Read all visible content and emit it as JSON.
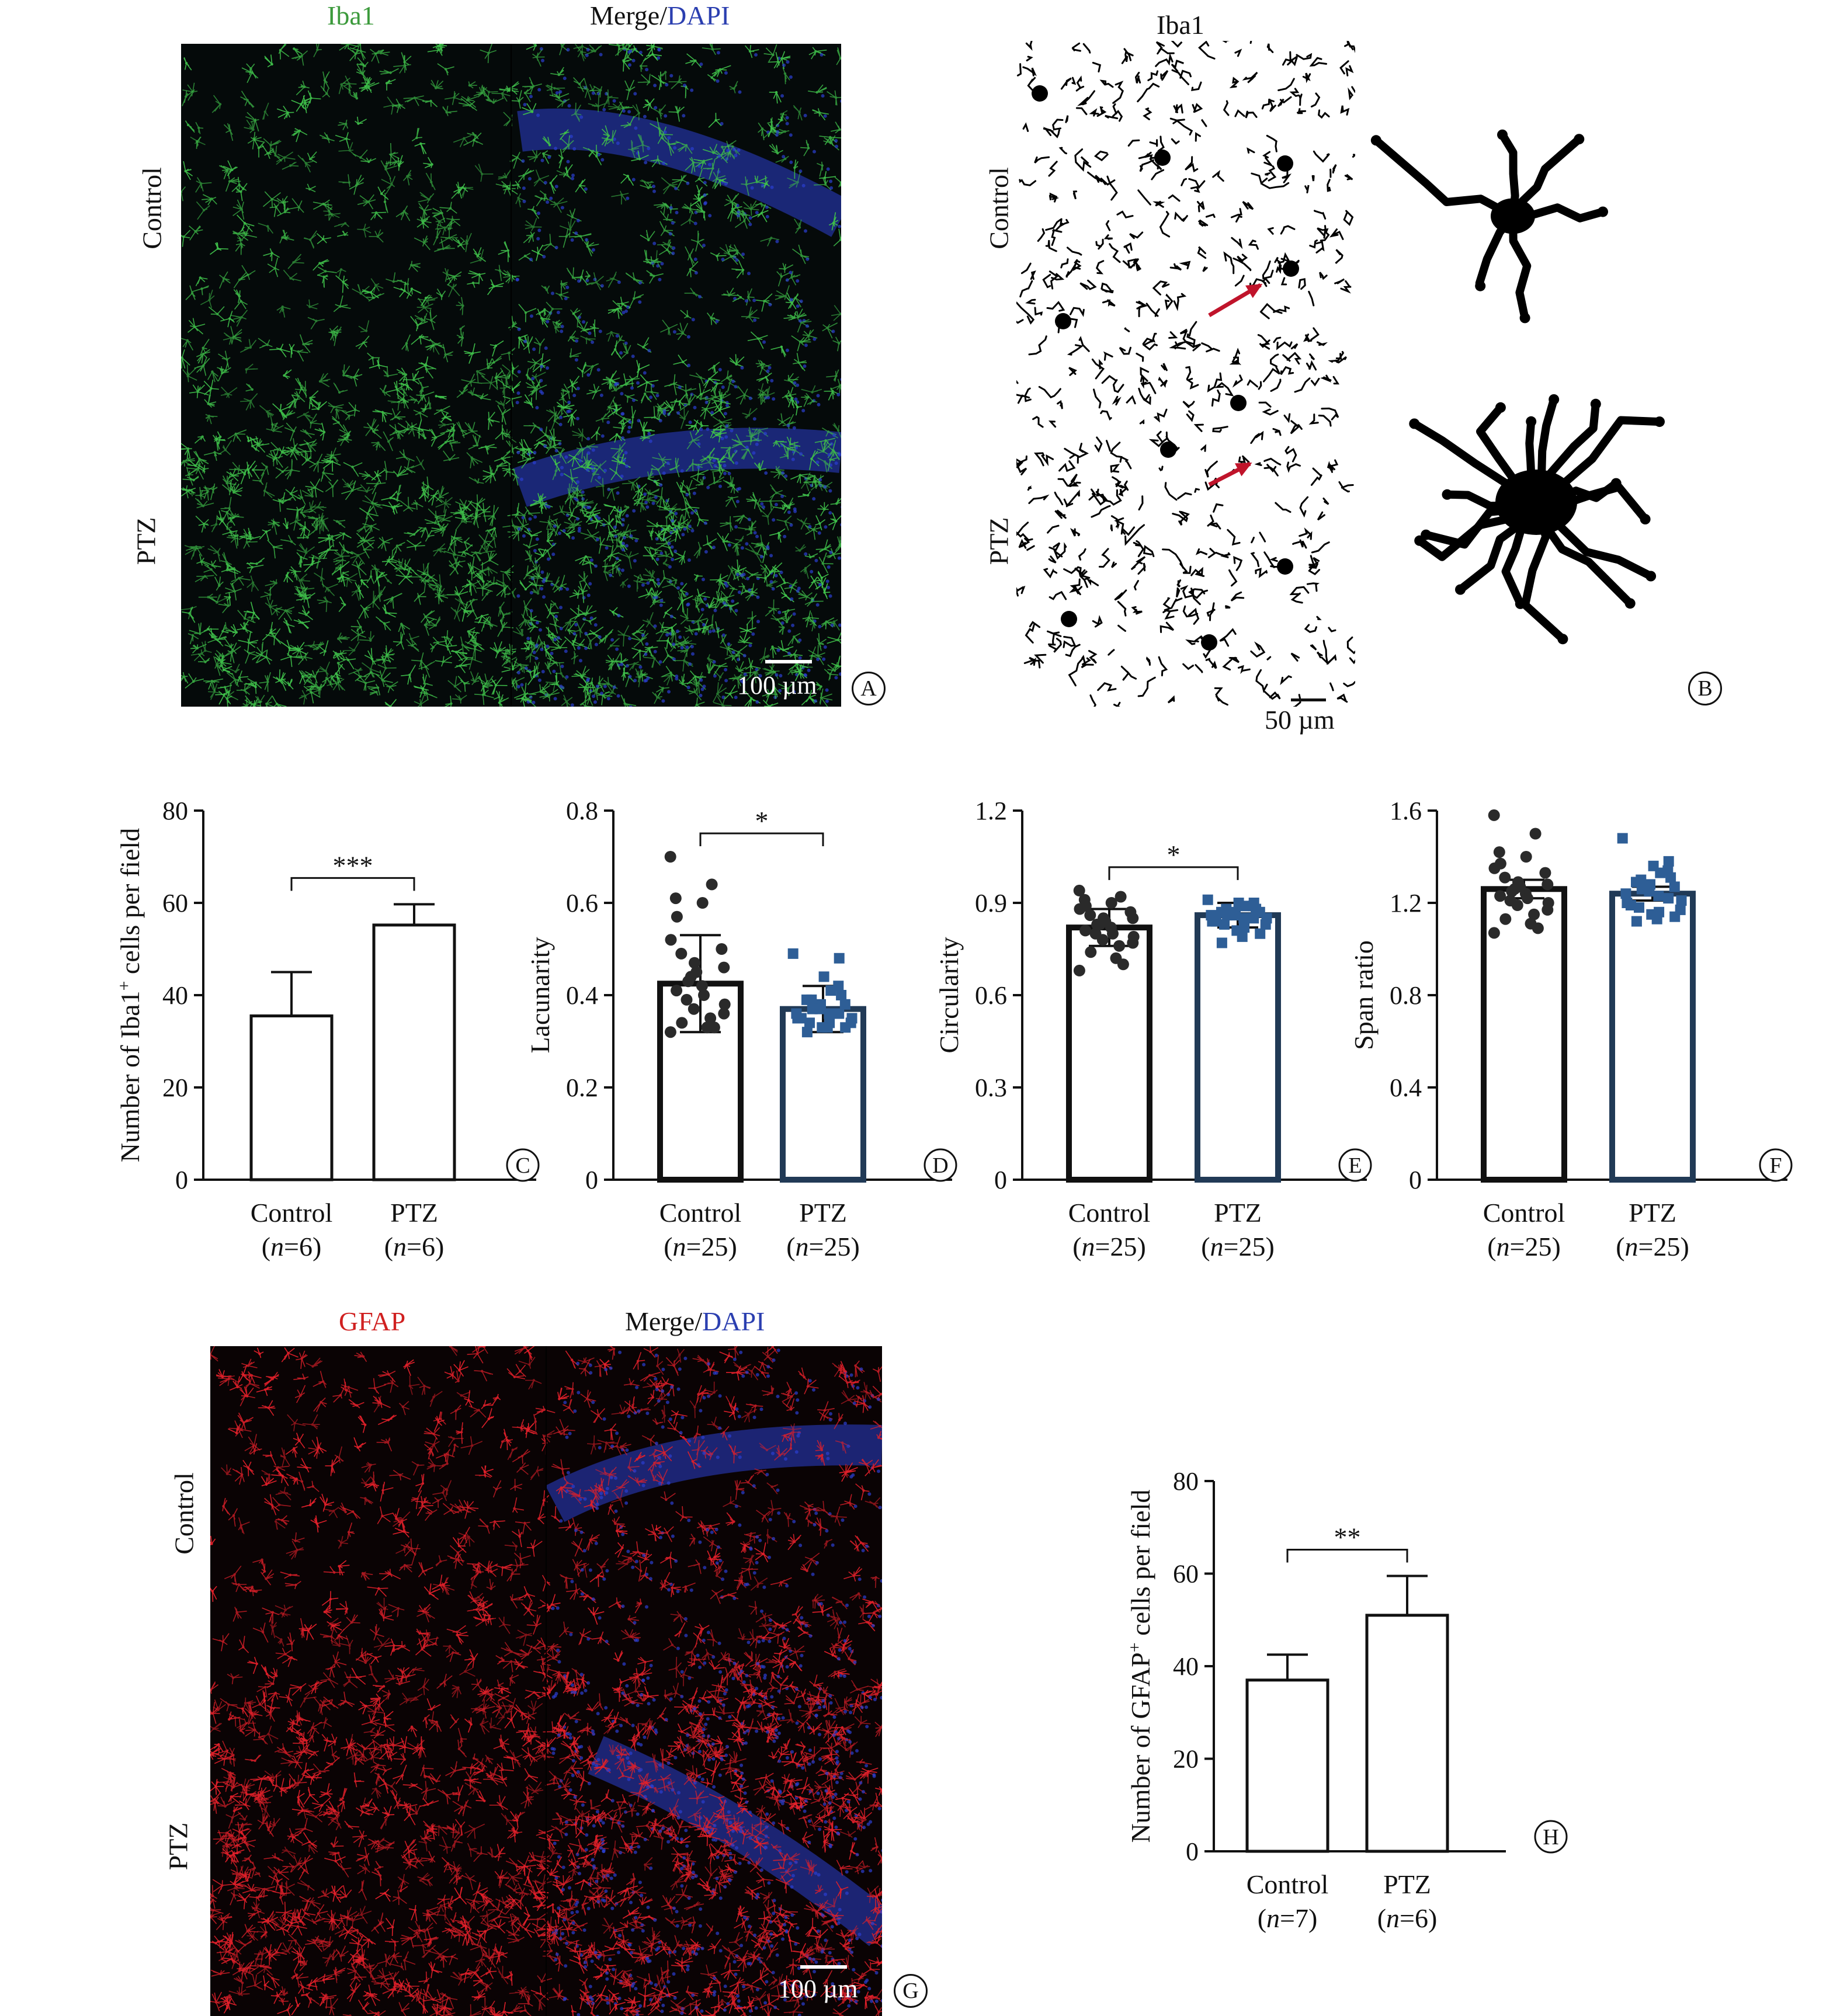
{
  "panel_a": {
    "col1_title": "Iba1",
    "col2_title_prefix": "Merge/",
    "col2_title_suffix": "DAPI",
    "row1_label": "Control",
    "row2_label": "PTZ",
    "scale_text": "100 µm",
    "letter": "A",
    "colors": {
      "stain": "#3fbf4a",
      "dapi": "#2b3fd0"
    }
  },
  "panel_b": {
    "title": "Iba1",
    "row1_label": "Control",
    "row2_label": "PTZ",
    "scale_text": "50 µm",
    "letter": "B",
    "colors": {
      "arrow": "#c0142b"
    }
  },
  "panel_g": {
    "col1_title": "GFAP",
    "col2_title_prefix": "Merge/",
    "col2_title_suffix": "DAPI",
    "row1_label": "Control",
    "row2_label": "PTZ",
    "scale_text": "100 µm",
    "letter": "G",
    "colors": {
      "stain": "#e0202a",
      "dapi": "#2b3fd0"
    }
  },
  "chart_data": [
    {
      "id": "C",
      "type": "bar",
      "letter": "C",
      "ylabel_pre": "Number of Iba1",
      "ylabel_sup": "+",
      "ylabel_post": " cells per field",
      "ylim": [
        0,
        80
      ],
      "yticks": [
        "0",
        "20",
        "40",
        "60",
        "80"
      ],
      "categories": [
        {
          "name": "Control",
          "n_pre": "(",
          "n_italic": "n",
          "n_post": "=6)",
          "value": 35.5,
          "error": 9.5
        },
        {
          "name": "PTZ",
          "n_pre": "(",
          "n_italic": "n",
          "n_post": "=6)",
          "value": 55.2,
          "error": 4.5
        }
      ],
      "significance": "***",
      "bar_color": "#111111",
      "points": false
    },
    {
      "id": "D",
      "type": "bar",
      "letter": "D",
      "ylabel": "Lacunarity",
      "ylim": [
        0,
        0.8
      ],
      "yticks": [
        "0",
        "0.2",
        "0.4",
        "0.6",
        "0.8"
      ],
      "categories": [
        {
          "name": "Control",
          "n_pre": "(",
          "n_italic": "n",
          "n_post": "=25)",
          "value": 0.425,
          "error": 0.105,
          "points": [
            0.7,
            0.64,
            0.61,
            0.6,
            0.57,
            0.52,
            0.5,
            0.49,
            0.47,
            0.46,
            0.45,
            0.44,
            0.43,
            0.42,
            0.41,
            0.4,
            0.39,
            0.38,
            0.37,
            0.36,
            0.35,
            0.34,
            0.33,
            0.33,
            0.32
          ]
        },
        {
          "name": "PTZ",
          "n_pre": "(",
          "n_italic": "n",
          "n_post": "=25)",
          "value": 0.37,
          "error": 0.05,
          "points": [
            0.49,
            0.48,
            0.44,
            0.42,
            0.41,
            0.4,
            0.39,
            0.39,
            0.38,
            0.38,
            0.37,
            0.37,
            0.36,
            0.36,
            0.36,
            0.35,
            0.35,
            0.35,
            0.34,
            0.34,
            0.34,
            0.33,
            0.33,
            0.33,
            0.32
          ]
        }
      ],
      "significance": "*",
      "point_colors": [
        "#2a2a2a",
        "#2e5e96"
      ],
      "bar_colors": [
        "#111111",
        "#213a56"
      ]
    },
    {
      "id": "E",
      "type": "bar",
      "letter": "E",
      "ylabel": "Circularity",
      "ylim": [
        0,
        1.2
      ],
      "yticks": [
        "0",
        "0.3",
        "0.6",
        "0.9",
        "1.2"
      ],
      "categories": [
        {
          "name": "Control",
          "n_pre": "(",
          "n_italic": "n",
          "n_post": "=25)",
          "value": 0.82,
          "error": 0.06,
          "points": [
            0.94,
            0.92,
            0.91,
            0.9,
            0.89,
            0.88,
            0.87,
            0.86,
            0.85,
            0.85,
            0.84,
            0.83,
            0.83,
            0.82,
            0.81,
            0.8,
            0.8,
            0.79,
            0.78,
            0.77,
            0.76,
            0.74,
            0.72,
            0.7,
            0.68
          ]
        },
        {
          "name": "PTZ",
          "n_pre": "(",
          "n_italic": "n",
          "n_post": "=25)",
          "value": 0.86,
          "error": 0.04,
          "points": [
            0.91,
            0.9,
            0.9,
            0.89,
            0.89,
            0.88,
            0.88,
            0.87,
            0.87,
            0.87,
            0.86,
            0.86,
            0.86,
            0.85,
            0.85,
            0.85,
            0.84,
            0.84,
            0.83,
            0.83,
            0.82,
            0.81,
            0.8,
            0.79,
            0.77
          ]
        }
      ],
      "significance": "*",
      "point_colors": [
        "#2a2a2a",
        "#2e5e96"
      ],
      "bar_colors": [
        "#111111",
        "#213a56"
      ]
    },
    {
      "id": "F",
      "type": "bar",
      "letter": "F",
      "ylabel": "Span ratio",
      "ylim": [
        0,
        1.6
      ],
      "yticks": [
        "0",
        "0.4",
        "0.8",
        "1.2",
        "1.6"
      ],
      "categories": [
        {
          "name": "Control",
          "n_pre": "(",
          "n_italic": "n",
          "n_post": "=25)",
          "value": 1.26,
          "error": 0.04,
          "points": [
            1.58,
            1.5,
            1.42,
            1.4,
            1.37,
            1.35,
            1.33,
            1.31,
            1.29,
            1.28,
            1.27,
            1.26,
            1.25,
            1.24,
            1.23,
            1.22,
            1.21,
            1.2,
            1.19,
            1.17,
            1.15,
            1.13,
            1.11,
            1.09,
            1.07
          ]
        },
        {
          "name": "PTZ",
          "n_pre": "(",
          "n_italic": "n",
          "n_post": "=25)",
          "value": 1.24,
          "error": 0.03,
          "points": [
            1.48,
            1.38,
            1.36,
            1.34,
            1.33,
            1.31,
            1.3,
            1.29,
            1.28,
            1.27,
            1.26,
            1.25,
            1.24,
            1.23,
            1.22,
            1.21,
            1.2,
            1.19,
            1.18,
            1.17,
            1.16,
            1.15,
            1.14,
            1.13,
            1.12
          ]
        }
      ],
      "significance": "",
      "point_colors": [
        "#2a2a2a",
        "#2e5e96"
      ],
      "bar_colors": [
        "#111111",
        "#213a56"
      ]
    },
    {
      "id": "H",
      "type": "bar",
      "letter": "H",
      "ylabel_pre": "Number of GFAP",
      "ylabel_sup": "+",
      "ylabel_post": " cells per field",
      "ylim": [
        0,
        80
      ],
      "yticks": [
        "0",
        "20",
        "40",
        "60",
        "80"
      ],
      "categories": [
        {
          "name": "Control",
          "n_pre": "(",
          "n_italic": "n",
          "n_post": "=7)",
          "value": 37.0,
          "error": 5.5
        },
        {
          "name": "PTZ",
          "n_pre": "(",
          "n_italic": "n",
          "n_post": "=6)",
          "value": 51.0,
          "error": 8.5
        }
      ],
      "significance": "**",
      "bar_color": "#111111",
      "points": false
    }
  ]
}
